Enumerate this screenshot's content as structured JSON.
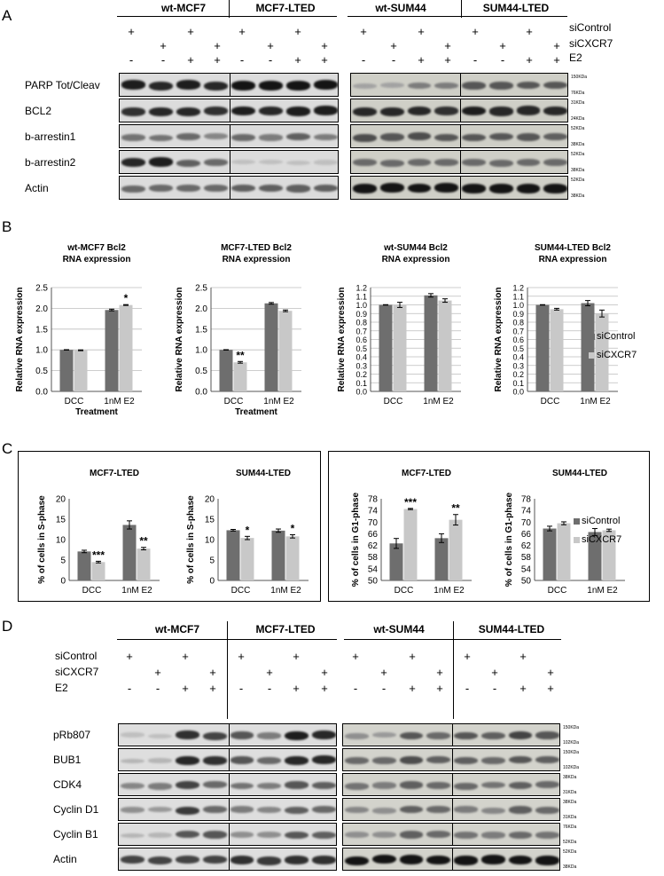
{
  "panels": {
    "A": "A",
    "B": "B",
    "C": "C",
    "D": "D"
  },
  "groups": [
    "wt-MCF7",
    "MCF7-LTED",
    "wt-SUM44",
    "SUM44-LTED"
  ],
  "conditions": {
    "labels": [
      "siControl",
      "siCXCR7",
      "E2"
    ],
    "siControl": [
      "+",
      "",
      "+",
      "",
      "+",
      "",
      "+",
      "",
      "+",
      "",
      "+",
      "",
      "+",
      "",
      "+",
      ""
    ],
    "siCXCR7": [
      "",
      "+",
      "",
      "+",
      "",
      "+",
      "",
      "+",
      "",
      "+",
      "",
      "+",
      "",
      "+",
      "",
      "+"
    ],
    "E2": [
      "-",
      "-",
      "+",
      "+",
      "-",
      "-",
      "+",
      "+",
      "-",
      "-",
      "+",
      "+",
      "-",
      "-",
      "+",
      "+"
    ]
  },
  "blotA": {
    "rows": [
      "PARP Tot/Cleav",
      "BCL2",
      "b-arrestin1",
      "b-arrestin2",
      "Actin"
    ],
    "kda": [
      [
        "150KDa",
        "76KDa"
      ],
      [
        "31KDa",
        "24KDa"
      ],
      [
        "52KDa",
        "38KDa"
      ],
      [
        "52KDa",
        "38KDa"
      ],
      [
        "52KDa",
        "38KDa"
      ]
    ]
  },
  "blotD": {
    "rows": [
      "pRb807",
      "BUB1",
      "CDK4",
      "Cyclin D1",
      "Cyclin B1",
      "Actin"
    ],
    "kda": [
      [
        "150KDa",
        "102KDa"
      ],
      [
        "150KDa",
        "102KDa"
      ],
      [
        "38KDa",
        "31KDa"
      ],
      [
        "38KDa",
        "31KDa"
      ],
      [
        "76KDa",
        "52KDa"
      ],
      [
        "52KDa",
        "38KDa"
      ]
    ]
  },
  "legend": {
    "siControl": "siControl",
    "siCXCR7": "siCXCR7"
  },
  "colors": {
    "siControl": "#6e6e6e",
    "siCXCR7": "#c8c8c8"
  },
  "chart_data": [
    {
      "type": "bar",
      "panel": "B",
      "title": "wt-MCF7 Bcl2 RNA expression",
      "xlabel": "Treatment",
      "ylabel": "Relative RNA expression",
      "categories": [
        "DCC",
        "1nM E2"
      ],
      "ylim": [
        0,
        2.5
      ],
      "yticks": [
        "0.0",
        "0.5",
        "1.0",
        "1.5",
        "2.0",
        "2.5"
      ],
      "series": [
        {
          "name": "siControl",
          "values": [
            1.0,
            1.96
          ],
          "errors": [
            0.0,
            0.02
          ]
        },
        {
          "name": "siCXCR7",
          "values": [
            0.99,
            2.08
          ],
          "errors": [
            0.01,
            0.01
          ]
        }
      ],
      "annotations": [
        {
          "category": 1,
          "series": 1,
          "text": "*"
        }
      ]
    },
    {
      "type": "bar",
      "panel": "B",
      "title": "MCF7-LTED Bcl2 RNA expression",
      "xlabel": "Treatment",
      "ylabel": "Relative RNA expression",
      "categories": [
        "DCC",
        "1nM E2"
      ],
      "ylim": [
        0,
        2.5
      ],
      "yticks": [
        "0.0",
        "0.5",
        "1.0",
        "1.5",
        "2.0",
        "2.5"
      ],
      "series": [
        {
          "name": "siControl",
          "values": [
            1.0,
            2.12
          ],
          "errors": [
            0.0,
            0.02
          ]
        },
        {
          "name": "siCXCR7",
          "values": [
            0.7,
            1.94
          ],
          "errors": [
            0.02,
            0.02
          ]
        }
      ],
      "annotations": [
        {
          "category": 0,
          "series": 1,
          "text": "**"
        }
      ]
    },
    {
      "type": "bar",
      "panel": "B",
      "title": "wt-SUM44 Bcl2 RNA expression",
      "xlabel": "",
      "ylabel": "Relative RNA expression",
      "categories": [
        "DCC",
        "1nM E2"
      ],
      "ylim": [
        0,
        1.2
      ],
      "yticks": [
        "0.0",
        "0.1",
        "0.2",
        "0.3",
        "0.4",
        "0.5",
        "0.6",
        "0.7",
        "0.8",
        "0.9",
        "1.0",
        "1.1",
        "1.2"
      ],
      "series": [
        {
          "name": "siControl",
          "values": [
            1.0,
            1.11
          ],
          "errors": [
            0.0,
            0.02
          ]
        },
        {
          "name": "siCXCR7",
          "values": [
            1.0,
            1.05
          ],
          "errors": [
            0.03,
            0.02
          ]
        }
      ],
      "annotations": []
    },
    {
      "type": "bar",
      "panel": "B",
      "title": "SUM44-LTED Bcl2 RNA expression",
      "xlabel": "",
      "ylabel": "Relative RNA expression",
      "categories": [
        "DCC",
        "1nM E2"
      ],
      "ylim": [
        0,
        1.2
      ],
      "yticks": [
        "0.0",
        "0.1",
        "0.2",
        "0.3",
        "0.4",
        "0.5",
        "0.6",
        "0.7",
        "0.8",
        "0.9",
        "1.0",
        "1.1",
        "1.2"
      ],
      "series": [
        {
          "name": "siControl",
          "values": [
            1.0,
            1.02
          ],
          "errors": [
            0.0,
            0.03
          ]
        },
        {
          "name": "siCXCR7",
          "values": [
            0.95,
            0.9
          ],
          "errors": [
            0.01,
            0.04
          ]
        }
      ],
      "annotations": []
    },
    {
      "type": "bar",
      "panel": "C",
      "title": "MCF7-LTED",
      "xlabel": "",
      "ylabel": "% of cells in S-phase",
      "categories": [
        "DCC",
        "1nM E2"
      ],
      "ylim": [
        0,
        20
      ],
      "yticks": [
        "0",
        "5",
        "10",
        "15",
        "20"
      ],
      "series": [
        {
          "name": "siControl",
          "values": [
            7.1,
            13.6
          ],
          "errors": [
            0.3,
            1.0
          ]
        },
        {
          "name": "siCXCR7",
          "values": [
            4.5,
            7.8
          ],
          "errors": [
            0.2,
            0.3
          ]
        }
      ],
      "annotations": [
        {
          "category": 0,
          "series": 1,
          "text": "***"
        },
        {
          "category": 1,
          "series": 1,
          "text": "**"
        }
      ]
    },
    {
      "type": "bar",
      "panel": "C",
      "title": "SUM44-LTED",
      "xlabel": "",
      "ylabel": "% of cells in S-phase",
      "categories": [
        "DCC",
        "1nM E2"
      ],
      "ylim": [
        0,
        20
      ],
      "yticks": [
        "0",
        "5",
        "10",
        "15",
        "20"
      ],
      "series": [
        {
          "name": "siControl",
          "values": [
            12.3,
            12.2
          ],
          "errors": [
            0.2,
            0.4
          ]
        },
        {
          "name": "siCXCR7",
          "values": [
            10.4,
            10.8
          ],
          "errors": [
            0.4,
            0.4
          ]
        }
      ],
      "annotations": [
        {
          "category": 0,
          "series": 1,
          "text": "*"
        },
        {
          "category": 1,
          "series": 1,
          "text": "*"
        }
      ]
    },
    {
      "type": "bar",
      "panel": "C",
      "title": "MCF7-LTED",
      "xlabel": "",
      "ylabel": "% of cells in G1-phase",
      "categories": [
        "DCC",
        "1nM E2"
      ],
      "ylim": [
        50,
        78
      ],
      "yticks": [
        "50",
        "54",
        "58",
        "62",
        "66",
        "70",
        "74",
        "78"
      ],
      "series": [
        {
          "name": "siControl",
          "values": [
            62.7,
            64.5
          ],
          "errors": [
            1.7,
            1.5
          ]
        },
        {
          "name": "siCXCR7",
          "values": [
            74.5,
            70.8
          ],
          "errors": [
            0.2,
            1.8
          ]
        }
      ],
      "annotations": [
        {
          "category": 0,
          "series": 1,
          "text": "***"
        },
        {
          "category": 1,
          "series": 1,
          "text": "**"
        }
      ]
    },
    {
      "type": "bar",
      "panel": "C",
      "title": "SUM44-LTED",
      "xlabel": "",
      "ylabel": "% of cells in G1-phase",
      "categories": [
        "DCC",
        "1nM E2"
      ],
      "ylim": [
        50,
        78
      ],
      "yticks": [
        "50",
        "54",
        "58",
        "62",
        "66",
        "70",
        "74",
        "78"
      ],
      "series": [
        {
          "name": "siControl",
          "values": [
            67.8,
            66.6
          ],
          "errors": [
            0.8,
            1.2
          ]
        },
        {
          "name": "siCXCR7",
          "values": [
            69.6,
            67.2
          ],
          "errors": [
            0.5,
            0.4
          ]
        }
      ],
      "annotations": []
    }
  ]
}
